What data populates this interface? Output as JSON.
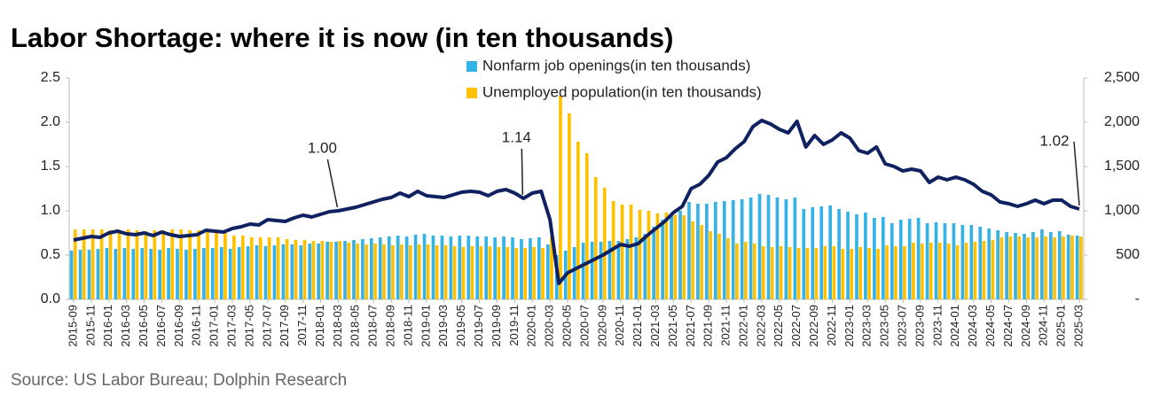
{
  "chart_data": {
    "type": "bar-line",
    "title": "Labor Shortage:  where it is now (in ten thousands)",
    "source": "Source: US Labor Bureau; Dolphin Research",
    "categories": [
      "2015-09",
      null,
      "2015-11",
      null,
      "2016-01",
      null,
      "2016-03",
      null,
      "2016-05",
      null,
      "2016-07",
      null,
      "2016-09",
      null,
      "2016-11",
      null,
      "2017-01",
      null,
      "2017-03",
      null,
      "2017-05",
      null,
      "2017-07",
      null,
      "2017-09",
      null,
      "2017-11",
      null,
      "2018-01",
      null,
      "2018-03",
      null,
      "2018-05",
      null,
      "2018-07",
      null,
      "2018-09",
      null,
      "2018-11",
      null,
      "2019-01",
      null,
      "2019-03",
      null,
      "2019-05",
      null,
      "2019-07",
      null,
      "2019-09",
      null,
      "2019-11",
      null,
      "2020-01",
      null,
      "2020-03",
      null,
      "2020-05",
      null,
      "2020-07",
      null,
      "2020-09",
      null,
      "2020-11",
      null,
      "2021-01",
      null,
      "2021-03",
      null,
      "2021-05",
      null,
      "2021-07",
      null,
      "2021-09",
      null,
      "2021-11",
      null,
      "2022-01",
      null,
      "2022-03",
      null,
      "2022-05",
      null,
      "2022-07",
      null,
      "2022-09",
      null,
      "2022-11",
      null,
      "2023-01",
      null,
      "2023-03",
      null,
      "2023-05",
      null,
      "2023-07",
      null,
      "2023-09",
      null,
      "2023-11",
      null,
      "2024-01",
      null,
      "2024-03",
      null,
      "2024-05",
      null,
      "2024-07",
      null,
      "2024-09",
      null,
      "2024-11",
      null,
      "2025-01",
      null,
      "2025-03"
    ],
    "series": [
      {
        "name": "Nonfarm job openings(in ten thousands)",
        "type": "bar",
        "axis": "y2",
        "color": "#35b2e6",
        "values": [
          550,
          560,
          560,
          570,
          580,
          570,
          580,
          570,
          580,
          570,
          560,
          580,
          570,
          560,
          570,
          580,
          580,
          590,
          570,
          590,
          600,
          610,
          600,
          610,
          620,
          620,
          610,
          630,
          630,
          650,
          650,
          660,
          670,
          680,
          690,
          700,
          710,
          720,
          710,
          730,
          740,
          720,
          720,
          710,
          720,
          720,
          710,
          710,
          700,
          710,
          700,
          680,
          690,
          700,
          620,
          500,
          550,
          590,
          640,
          650,
          650,
          660,
          660,
          680,
          700,
          740,
          820,
          900,
          950,
          1000,
          1100,
          1080,
          1080,
          1100,
          1110,
          1120,
          1130,
          1150,
          1190,
          1180,
          1150,
          1130,
          1150,
          1020,
          1040,
          1050,
          1060,
          1020,
          990,
          960,
          980,
          920,
          930,
          860,
          900,
          910,
          920,
          860,
          870,
          860,
          860,
          840,
          840,
          820,
          800,
          780,
          760,
          750,
          740,
          760,
          790,
          760,
          770,
          730,
          720
        ]
      },
      {
        "name": "Unemployed population(in ten thousands)",
        "type": "bar",
        "axis": "y2",
        "color": "#ffc000",
        "values": [
          790,
          790,
          790,
          790,
          780,
          780,
          790,
          780,
          770,
          780,
          780,
          790,
          790,
          780,
          780,
          760,
          760,
          750,
          720,
          720,
          700,
          700,
          700,
          700,
          680,
          670,
          670,
          660,
          660,
          650,
          660,
          640,
          630,
          620,
          630,
          620,
          610,
          620,
          610,
          620,
          620,
          610,
          610,
          600,
          590,
          600,
          600,
          600,
          590,
          590,
          580,
          580,
          590,
          580,
          710,
          2300,
          2100,
          1780,
          1650,
          1380,
          1260,
          1110,
          1070,
          1070,
          1010,
          1000,
          970,
          980,
          950,
          950,
          880,
          840,
          770,
          740,
          690,
          630,
          650,
          630,
          600,
          590,
          600,
          590,
          580,
          580,
          580,
          600,
          600,
          570,
          570,
          590,
          580,
          570,
          610,
          600,
          600,
          640,
          630,
          640,
          640,
          630,
          610,
          640,
          650,
          660,
          670,
          700,
          710,
          710,
          700,
          700,
          710,
          700,
          710,
          720,
          710
        ]
      },
      {
        "type": "line",
        "axis": "y",
        "color": "#0f2160",
        "values": [
          0.67,
          0.69,
          0.71,
          0.7,
          0.75,
          0.77,
          0.74,
          0.73,
          0.75,
          0.72,
          0.76,
          0.73,
          0.71,
          0.72,
          0.73,
          0.78,
          0.77,
          0.76,
          0.8,
          0.82,
          0.85,
          0.84,
          0.9,
          0.89,
          0.88,
          0.92,
          0.95,
          0.93,
          0.96,
          0.99,
          1.0,
          1.02,
          1.04,
          1.07,
          1.1,
          1.13,
          1.15,
          1.2,
          1.16,
          1.22,
          1.17,
          1.16,
          1.15,
          1.18,
          1.21,
          1.22,
          1.21,
          1.17,
          1.22,
          1.24,
          1.2,
          1.14,
          1.2,
          1.22,
          0.9,
          0.18,
          0.3,
          0.35,
          0.4,
          0.45,
          0.5,
          0.56,
          0.62,
          0.6,
          0.63,
          0.72,
          0.8,
          0.88,
          0.98,
          1.05,
          1.25,
          1.3,
          1.4,
          1.55,
          1.6,
          1.7,
          1.78,
          1.95,
          2.02,
          1.98,
          1.92,
          1.88,
          2.01,
          1.72,
          1.85,
          1.75,
          1.8,
          1.88,
          1.82,
          1.68,
          1.65,
          1.72,
          1.53,
          1.5,
          1.45,
          1.47,
          1.45,
          1.32,
          1.38,
          1.35,
          1.38,
          1.35,
          1.3,
          1.22,
          1.18,
          1.1,
          1.08,
          1.05,
          1.08,
          1.12,
          1.08,
          1.12,
          1.12,
          1.05,
          1.02
        ]
      }
    ],
    "ylim": [
      0,
      2.5
    ],
    "yticks": [
      {
        "value": 0,
        "label": "0.0"
      },
      0.5,
      {
        "value": 1,
        "label": "1.0"
      },
      1.5,
      {
        "value": 2,
        "label": "2.0"
      },
      2.5
    ],
    "y2lim": [
      0,
      2500
    ],
    "y2ticks": [
      {
        "value": 0,
        "label": "-"
      },
      500,
      {
        "value": 1000,
        "label": "1,000"
      },
      {
        "value": 1500,
        "label": "1,500"
      },
      {
        "value": 2000,
        "label": "2,000"
      },
      {
        "value": 2500,
        "label": "2,500"
      }
    ],
    "annotations": [
      {
        "label": "1.00",
        "x": "2018-03"
      },
      {
        "label": "1.14",
        "x": "2019-12"
      },
      {
        "label": "1.02",
        "x": "2025-03"
      }
    ]
  }
}
